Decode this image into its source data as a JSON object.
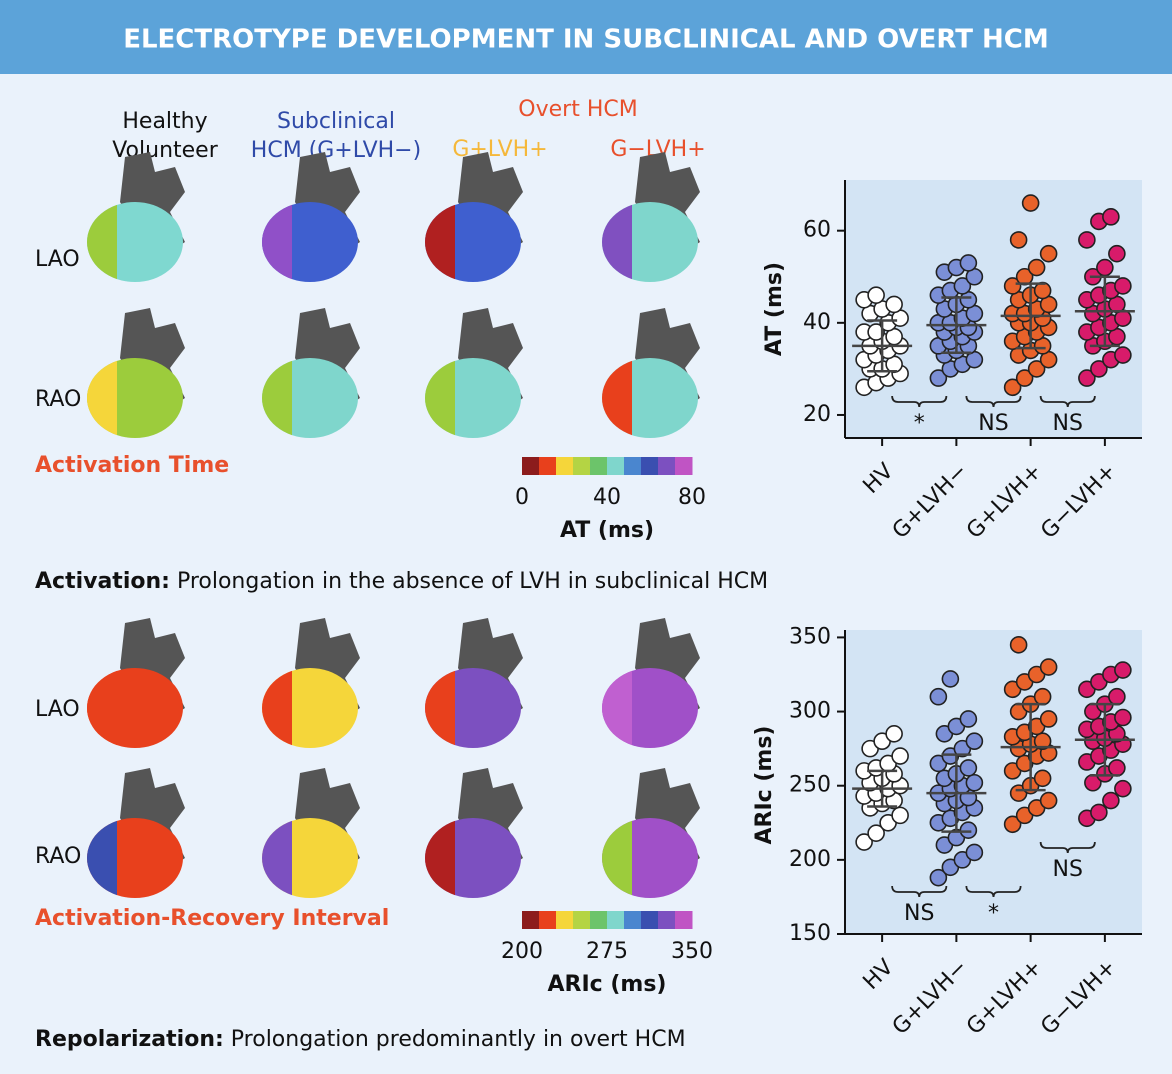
{
  "header": {
    "title": "ELECTROTYPE DEVELOPMENT IN SUBCLINICAL AND OVERT HCM"
  },
  "columns": [
    [
      "Healthy",
      "Volunteer"
    ],
    [
      "Subclinical",
      "HCM (G+LVH−)"
    ],
    [
      "G+LVH+"
    ],
    [
      "G−LVH+"
    ]
  ],
  "overt_label": "Overt HCM",
  "panels": [
    {
      "title": "Activation Time",
      "rows": [
        "LAO",
        "RAO"
      ],
      "colorbar": {
        "label": "AT (ms)",
        "lim": [
          0,
          80
        ],
        "ticks": [
          0,
          40,
          80
        ]
      },
      "caption": {
        "bold": "Activation:",
        "text": "Prolongation in the absence of LVH in subclinical HCM"
      }
    },
    {
      "title": "Activation-Recovery Interval",
      "rows": [
        "LAO",
        "RAO"
      ],
      "colorbar": {
        "label": "ARIc (ms)",
        "lim": [
          200,
          350
        ],
        "ticks": [
          200,
          275,
          350
        ]
      },
      "caption": {
        "bold": "Repolarization:",
        "text": "Prolongation predominantly in overt HCM"
      }
    }
  ],
  "colorbar_colors": [
    "#8c1c1c",
    "#e8401c",
    "#f5d63a",
    "#b4d444",
    "#6cc46a",
    "#7fd6cc",
    "#4a86cf",
    "#3a4fb0",
    "#7c50c0",
    "#c054c4"
  ],
  "chart_data": [
    {
      "type": "dot",
      "ylabel": "AT (ms)",
      "ylim": [
        15,
        71
      ],
      "yticks": [
        20,
        40,
        60
      ],
      "series": [
        {
          "name": "HV",
          "color": "#ffffff",
          "mean": 35,
          "sd": 5.5,
          "values": [
            26,
            27,
            28,
            29,
            30,
            30,
            31,
            32,
            33,
            34,
            35,
            35,
            36,
            37,
            38,
            38,
            40,
            41,
            42,
            43,
            44,
            45,
            46
          ]
        },
        {
          "name": "G+LVH−",
          "color": "#7b8fd6",
          "mean": 39.5,
          "sd": 6,
          "values": [
            28,
            30,
            31,
            32,
            33,
            34,
            35,
            35,
            36,
            37,
            38,
            38,
            39,
            39,
            40,
            40,
            41,
            42,
            43,
            44,
            45,
            46,
            47,
            48,
            50,
            51,
            52,
            53
          ]
        },
        {
          "name": "G+LVH+",
          "color": "#e8622a",
          "mean": 41.5,
          "sd": 7,
          "values": [
            26,
            28,
            30,
            32,
            33,
            34,
            35,
            36,
            37,
            38,
            39,
            40,
            40,
            41,
            42,
            42,
            43,
            44,
            45,
            46,
            47,
            48,
            50,
            52,
            55,
            58,
            66
          ]
        },
        {
          "name": "G−LVH+",
          "color": "#d81b6a",
          "mean": 42.5,
          "sd": 7.5,
          "values": [
            28,
            30,
            32,
            33,
            35,
            36,
            37,
            38,
            39,
            40,
            41,
            42,
            43,
            44,
            45,
            46,
            47,
            48,
            50,
            52,
            55,
            58,
            62,
            63
          ]
        }
      ],
      "annotations": [
        "*",
        "NS",
        "NS"
      ]
    },
    {
      "type": "dot",
      "ylabel": "ARIc (ms)",
      "ylim": [
        150,
        355
      ],
      "yticks": [
        150,
        200,
        250,
        300,
        350
      ],
      "series": [
        {
          "name": "HV",
          "color": "#ffffff",
          "mean": 248,
          "sd": 12,
          "values": [
            212,
            218,
            225,
            230,
            235,
            238,
            240,
            243,
            245,
            248,
            250,
            252,
            255,
            258,
            260,
            262,
            265,
            270,
            275,
            280,
            285
          ]
        },
        {
          "name": "G+LVH−",
          "color": "#7b8fd6",
          "mean": 245,
          "sd": 26,
          "values": [
            188,
            195,
            200,
            205,
            210,
            215,
            220,
            225,
            228,
            232,
            235,
            238,
            240,
            242,
            245,
            248,
            250,
            252,
            255,
            258,
            262,
            265,
            270,
            275,
            280,
            285,
            290,
            295,
            310,
            322
          ]
        },
        {
          "name": "G+LVH+",
          "color": "#e8622a",
          "mean": 276,
          "sd": 29,
          "values": [
            224,
            230,
            235,
            240,
            245,
            250,
            255,
            260,
            265,
            270,
            272,
            275,
            278,
            280,
            283,
            286,
            290,
            295,
            300,
            305,
            310,
            315,
            320,
            325,
            330,
            345
          ]
        },
        {
          "name": "G−LVH+",
          "color": "#d81b6a",
          "mean": 281,
          "sd": 24,
          "values": [
            228,
            232,
            240,
            248,
            252,
            258,
            262,
            266,
            270,
            274,
            278,
            280,
            282,
            285,
            288,
            290,
            293,
            296,
            300,
            305,
            310,
            315,
            320,
            325,
            328
          ]
        }
      ],
      "annotations": [
        "NS",
        "*",
        "NS"
      ]
    }
  ]
}
